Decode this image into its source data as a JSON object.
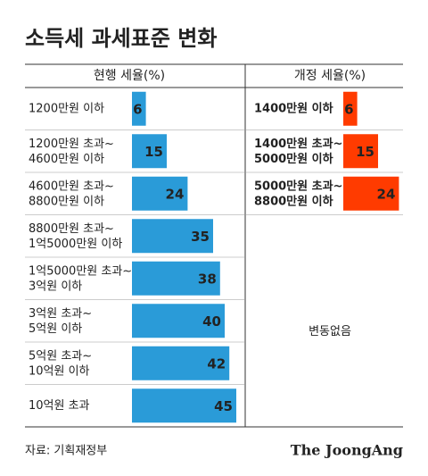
{
  "title": "소득세 과세표준 변화",
  "chart_data": [
    {
      "type": "hbar",
      "header": "현행 세율(%)",
      "color": "#2a9bd8",
      "categories": [
        "1200만원 이하",
        "1200만원 초과~\n4600만원 이하",
        "4600만원 초과~\n8800만원 이하",
        "8800만원 초과~\n1억5000만원 이하",
        "1억5000만원 초과~\n3억원 이하",
        "3억원 초과~\n5억원 이하",
        "5억원 초과~\n10억원 이하",
        "10억원 초과"
      ],
      "values": [
        6,
        15,
        24,
        35,
        38,
        40,
        42,
        45
      ]
    },
    {
      "type": "hbar",
      "header": "개정 세율(%)",
      "color": "#ff3b00",
      "categories": [
        "1400만원 이하",
        "1400만원 초과~\n5000만원 이하",
        "5000만원 초과~\n8800만원 이하"
      ],
      "values": [
        6,
        15,
        24
      ],
      "note": "변동없음"
    }
  ],
  "source": "자료: 기획재정부",
  "brand": "The JoongAng"
}
